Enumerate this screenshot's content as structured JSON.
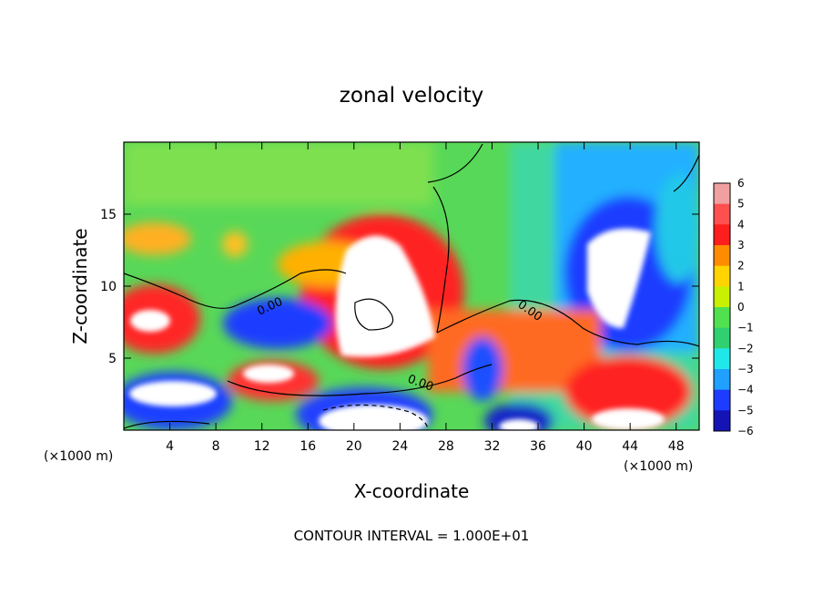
{
  "chart_data": {
    "type": "heatmap",
    "title": "zonal velocity",
    "xlabel": "X-coordinate",
    "ylabel": "Z-coordinate",
    "x_units": "(×1000 m)",
    "y_units": "(×1000 m)",
    "xlim": [
      0,
      50
    ],
    "ylim": [
      0,
      20
    ],
    "x_ticks": [
      4,
      8,
      12,
      16,
      20,
      24,
      28,
      32,
      36,
      40,
      44,
      48
    ],
    "y_ticks": [
      5,
      10,
      15
    ],
    "colorbar": {
      "levels": [
        6,
        5,
        4,
        3,
        2,
        1,
        0,
        -1,
        -2,
        -3,
        -4,
        -5,
        -6
      ],
      "colors": [
        "#f0a0a0",
        "#ff5050",
        "#ff1e1e",
        "#ff8c00",
        "#ffd400",
        "#c8f000",
        "#50e050",
        "#30d070",
        "#20e8e8",
        "#20a0ff",
        "#1e3cff",
        "#1414b4",
        "#7814a0"
      ]
    },
    "contour_labels": [
      "0.00",
      "0.00",
      "0.00"
    ],
    "footer": "CONTOUR INTERVAL = 1.000E+01"
  }
}
